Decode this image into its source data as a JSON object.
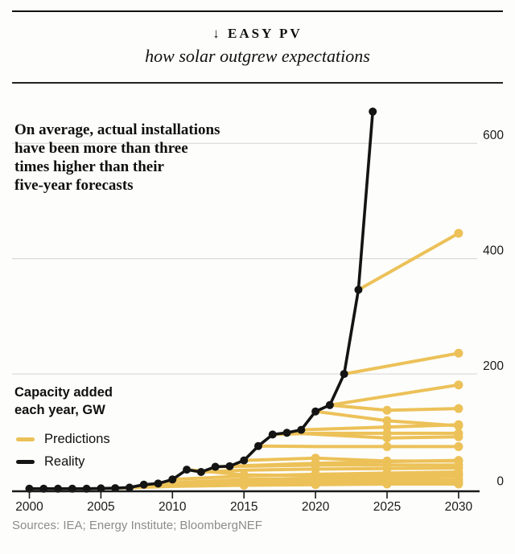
{
  "header": {
    "kicker": "↓ EASY PV",
    "subtitle": "how solar outgrew expectations"
  },
  "annotation": {
    "lines": [
      "On average, actual installations",
      "have been more than three",
      "times higher than their",
      "five-year forecasts"
    ]
  },
  "axis_title": {
    "line1": "Capacity added",
    "line2": "each year, GW"
  },
  "legend": [
    {
      "label": "Predictions",
      "color": "#ECC158"
    },
    {
      "label": "Reality",
      "color": "#141414"
    }
  ],
  "source": "Sources: IEA; Energy Institute; BloombergNEF",
  "colors": {
    "background": "#fdfdfb",
    "text": "#1a1a1a",
    "axis": "#1a1a1a",
    "gridline": "#d9d9d6",
    "prediction": "#ECC158",
    "reality": "#141414",
    "source_text": "#8c8c8c"
  },
  "chart_data": {
    "type": "line",
    "title": "Easy PV — how solar outgrew expectations",
    "ylabel": "Capacity added each year, GW",
    "xlabel": "",
    "grid": "horizontal",
    "legend_position": "middle-left",
    "x_ticks": [
      2000,
      2005,
      2010,
      2015,
      2020,
      2025,
      2030
    ],
    "y_ticks": [
      0,
      200,
      400,
      600
    ],
    "xlim": [
      2000,
      2031
    ],
    "ylim": [
      0,
      680
    ],
    "prediction_color": "#ECC158",
    "series": [
      {
        "name": "Reality",
        "color": "#141414",
        "x": [
          2000,
          2001,
          2002,
          2003,
          2004,
          2005,
          2006,
          2007,
          2008,
          2009,
          2010,
          2011,
          2012,
          2013,
          2014,
          2015,
          2016,
          2017,
          2018,
          2019,
          2020,
          2021,
          2022,
          2023,
          2024
        ],
        "values": [
          1,
          1,
          1,
          1,
          1,
          1.5,
          2,
          3,
          8,
          10,
          17,
          34,
          30,
          39,
          40,
          50,
          75,
          95,
          98,
          103,
          135,
          146,
          200,
          346,
          655
        ]
      }
    ],
    "predictions": [
      {
        "name": "forecast-2006",
        "points": [
          [
            2006,
            2
          ],
          [
            2010,
            5
          ],
          [
            2015,
            7
          ],
          [
            2020,
            8
          ],
          [
            2025,
            9
          ],
          [
            2030,
            9
          ]
        ],
        "markers": [
          [
            2015,
            7
          ],
          [
            2020,
            8
          ],
          [
            2025,
            9
          ],
          [
            2030,
            9
          ]
        ]
      },
      {
        "name": "forecast-2007",
        "points": [
          [
            2007,
            3
          ],
          [
            2010,
            7
          ],
          [
            2015,
            10
          ],
          [
            2020,
            12
          ],
          [
            2025,
            13
          ],
          [
            2030,
            13
          ]
        ],
        "markers": [
          [
            2015,
            10
          ],
          [
            2020,
            12
          ],
          [
            2025,
            13
          ],
          [
            2030,
            13
          ]
        ]
      },
      {
        "name": "forecast-2008",
        "points": [
          [
            2008,
            8
          ],
          [
            2015,
            14
          ],
          [
            2020,
            16
          ],
          [
            2025,
            17
          ],
          [
            2030,
            17
          ]
        ],
        "markers": [
          [
            2015,
            14
          ],
          [
            2020,
            16
          ],
          [
            2025,
            17
          ],
          [
            2030,
            17
          ]
        ]
      },
      {
        "name": "forecast-2009",
        "points": [
          [
            2009,
            10
          ],
          [
            2015,
            17
          ],
          [
            2020,
            19
          ],
          [
            2025,
            21
          ],
          [
            2030,
            23
          ]
        ],
        "markers": [
          [
            2015,
            17
          ],
          [
            2020,
            19
          ],
          [
            2025,
            21
          ],
          [
            2030,
            23
          ]
        ]
      },
      {
        "name": "forecast-2010",
        "points": [
          [
            2010,
            17
          ],
          [
            2015,
            23
          ],
          [
            2020,
            26
          ],
          [
            2025,
            28
          ],
          [
            2030,
            30
          ]
        ],
        "markers": [
          [
            2015,
            23
          ],
          [
            2020,
            26
          ],
          [
            2025,
            28
          ],
          [
            2030,
            30
          ]
        ]
      },
      {
        "name": "forecast-2011",
        "points": [
          [
            2011,
            34
          ],
          [
            2015,
            25
          ],
          [
            2020,
            24
          ],
          [
            2025,
            25
          ],
          [
            2030,
            26
          ]
        ],
        "markers": [
          [
            2015,
            25
          ],
          [
            2020,
            24
          ],
          [
            2025,
            25
          ],
          [
            2030,
            26
          ]
        ]
      },
      {
        "name": "forecast-2012",
        "points": [
          [
            2012,
            30
          ],
          [
            2015,
            33
          ],
          [
            2020,
            35
          ],
          [
            2025,
            36
          ],
          [
            2030,
            37
          ]
        ],
        "markers": [
          [
            2020,
            35
          ],
          [
            2025,
            36
          ],
          [
            2030,
            37
          ]
        ]
      },
      {
        "name": "forecast-2013",
        "points": [
          [
            2013,
            39
          ],
          [
            2020,
            42
          ],
          [
            2025,
            42
          ],
          [
            2030,
            42
          ]
        ],
        "markers": [
          [
            2020,
            42
          ],
          [
            2025,
            42
          ],
          [
            2030,
            42
          ]
        ]
      },
      {
        "name": "forecast-2014",
        "points": [
          [
            2014,
            40
          ],
          [
            2020,
            45
          ],
          [
            2025,
            48
          ],
          [
            2030,
            50
          ]
        ],
        "markers": [
          [
            2020,
            45
          ],
          [
            2025,
            48
          ],
          [
            2030,
            50
          ]
        ]
      },
      {
        "name": "forecast-2015",
        "points": [
          [
            2015,
            50
          ],
          [
            2020,
            54
          ],
          [
            2025,
            49
          ],
          [
            2030,
            49
          ]
        ],
        "markers": [
          [
            2020,
            54
          ],
          [
            2025,
            49
          ],
          [
            2030,
            49
          ]
        ]
      },
      {
        "name": "forecast-2016",
        "points": [
          [
            2016,
            75
          ],
          [
            2020,
            74
          ],
          [
            2025,
            74
          ],
          [
            2030,
            74
          ]
        ],
        "markers": [
          [
            2025,
            74
          ],
          [
            2030,
            74
          ]
        ]
      },
      {
        "name": "forecast-2017",
        "points": [
          [
            2017,
            95
          ],
          [
            2020,
            97
          ],
          [
            2025,
            97
          ],
          [
            2030,
            97
          ]
        ],
        "markers": [
          [
            2025,
            97
          ],
          [
            2030,
            97
          ]
        ]
      },
      {
        "name": "forecast-2018",
        "points": [
          [
            2018,
            98
          ],
          [
            2025,
            89
          ],
          [
            2030,
            91
          ]
        ],
        "markers": [
          [
            2025,
            89
          ],
          [
            2030,
            91
          ]
        ]
      },
      {
        "name": "forecast-2019",
        "points": [
          [
            2019,
            103
          ],
          [
            2025,
            108
          ],
          [
            2030,
            112
          ]
        ],
        "markers": [
          [
            2025,
            108
          ],
          [
            2030,
            112
          ]
        ]
      },
      {
        "name": "forecast-2020",
        "points": [
          [
            2020,
            135
          ],
          [
            2025,
            119
          ],
          [
            2030,
            110
          ]
        ],
        "markers": [
          [
            2025,
            119
          ],
          [
            2030,
            110
          ]
        ]
      },
      {
        "name": "forecast-2021a",
        "points": [
          [
            2021,
            146
          ],
          [
            2025,
            137
          ],
          [
            2030,
            140
          ]
        ],
        "markers": [
          [
            2025,
            137
          ],
          [
            2030,
            140
          ]
        ]
      },
      {
        "name": "forecast-2021b",
        "points": [
          [
            2021,
            146
          ],
          [
            2030,
            181
          ]
        ],
        "markers": [
          [
            2030,
            181
          ]
        ]
      },
      {
        "name": "forecast-2022",
        "points": [
          [
            2022,
            200
          ],
          [
            2030,
            236
          ]
        ],
        "markers": [
          [
            2030,
            236
          ]
        ]
      },
      {
        "name": "forecast-2023",
        "points": [
          [
            2023,
            346
          ],
          [
            2030,
            444
          ]
        ],
        "markers": [
          [
            2030,
            444
          ]
        ]
      }
    ]
  }
}
